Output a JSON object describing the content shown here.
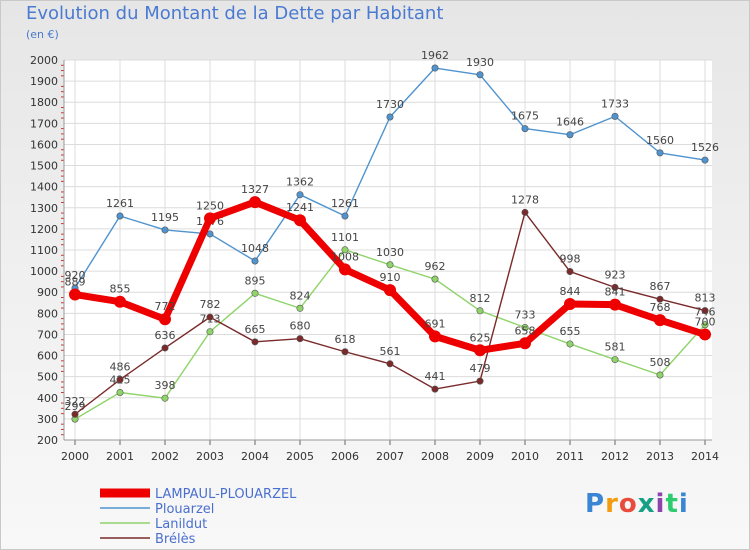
{
  "header": {
    "title": "Evolution du Montant de la Dette par Habitant",
    "unit": "(en €)"
  },
  "logo": {
    "text": "Proxiti"
  },
  "chart_data": {
    "type": "line",
    "title": "Evolution du Montant de la Dette par Habitant",
    "ylabel": "(en €)",
    "xlabel": "",
    "ylim": [
      200,
      2000
    ],
    "x": [
      "2000",
      "2001",
      "2002",
      "2003",
      "2004",
      "2005",
      "2006",
      "2007",
      "2008",
      "2009",
      "2010",
      "2011",
      "2012",
      "2013",
      "2014"
    ],
    "yticks": [
      "200",
      "300",
      "400",
      "500",
      "600",
      "700",
      "800",
      "900",
      "1000",
      "1100",
      "1200",
      "1300",
      "1400",
      "1500",
      "1600",
      "1700",
      "1800",
      "1900",
      "2000"
    ],
    "grid": true,
    "legend_position": "bottom-left",
    "series": [
      {
        "name": "Plouarzel",
        "color": "#4f93cf",
        "values": [
          920,
          1261,
          1195,
          1176,
          1048,
          1362,
          1261,
          1730,
          1962,
          1930,
          1675,
          1646,
          1733,
          1560,
          1526
        ],
        "labels": [
          "920",
          "1261",
          "1195",
          "1176",
          "1048",
          "1362",
          "1261",
          "1730",
          "1962",
          "1930",
          "1675",
          "1646",
          "1733",
          "1560",
          "1526"
        ]
      },
      {
        "name": "Lanildut",
        "color": "#8fd46a",
        "values": [
          299,
          425,
          398,
          713,
          895,
          824,
          1101,
          1030,
          962,
          812,
          733,
          655,
          581,
          508,
          746
        ],
        "labels": [
          "299",
          "425",
          "398",
          "713",
          "895",
          "824",
          "1101",
          "1030",
          "962",
          "812",
          "733",
          "655",
          "581",
          "508",
          "746"
        ]
      },
      {
        "name": "Brélès",
        "color": "#7a2a2a",
        "values": [
          322,
          486,
          636,
          782,
          665,
          680,
          618,
          561,
          441,
          479,
          1278,
          998,
          923,
          867,
          813
        ],
        "labels": [
          "322",
          "486",
          "636",
          "782",
          "665",
          "680",
          "618",
          "561",
          "441",
          "479",
          "1278",
          "998",
          "923",
          "867",
          "813"
        ]
      },
      {
        "name": "LAMPAUL-PLOUARZEL",
        "color": "#ee0000",
        "values": [
          889,
          855,
          772,
          1250,
          1327,
          1241,
          1008,
          910,
          691,
          625,
          658,
          844,
          841,
          768,
          700
        ],
        "labels": [
          "889",
          "855",
          "772",
          "1250",
          "1327",
          "1241",
          "1008",
          "910",
          "691",
          "625",
          "658",
          "844",
          "841",
          "768",
          "700"
        ]
      }
    ],
    "legend_order": [
      "LAMPAUL-PLOUARZEL",
      "Plouarzel",
      "Lanildut",
      "Brélès"
    ]
  }
}
